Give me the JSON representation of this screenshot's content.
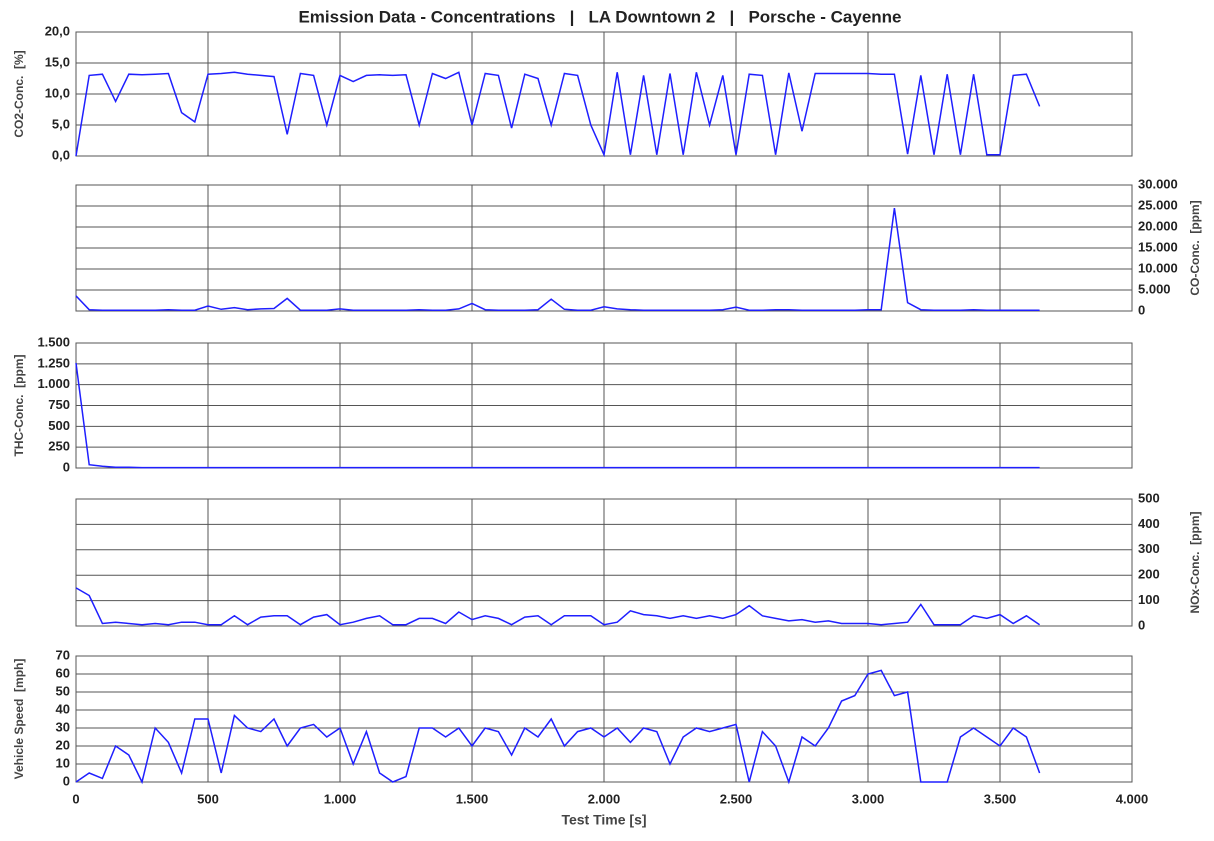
{
  "chart_data": [
    {
      "type": "line",
      "title": "Emission Data - Concentrations   |   LA Downtown 2   |   Porsche - Cayenne",
      "ylabel": "CO2-Conc.  [%]",
      "yaxis": "left",
      "grid": true,
      "color": "#1f1fff",
      "x": [
        0,
        50,
        100,
        150,
        200,
        250,
        300,
        350,
        400,
        450,
        500,
        550,
        600,
        650,
        700,
        750,
        800,
        850,
        900,
        950,
        1000,
        1050,
        1100,
        1150,
        1200,
        1250,
        1300,
        1350,
        1400,
        1450,
        1500,
        1550,
        1600,
        1650,
        1700,
        1750,
        1800,
        1850,
        1900,
        1950,
        2000,
        2050,
        2100,
        2150,
        2200,
        2250,
        2300,
        2350,
        2400,
        2450,
        2500,
        2550,
        2600,
        2650,
        2700,
        2750,
        2800,
        2850,
        2900,
        2950,
        3000,
        3050,
        3100,
        3150,
        3200,
        3250,
        3300,
        3350,
        3400,
        3450,
        3500,
        3550,
        3600,
        3650
      ],
      "values": [
        0,
        13,
        13.2,
        8.8,
        13.2,
        13.1,
        13.2,
        13.3,
        7,
        5.5,
        13.2,
        13.3,
        13.5,
        13.2,
        13,
        12.8,
        3.5,
        13.3,
        13,
        5,
        13,
        12,
        13,
        13.1,
        13,
        13.1,
        5,
        13.3,
        12.5,
        13.5,
        5,
        13.3,
        13,
        4.5,
        13.2,
        12.5,
        5,
        13.3,
        13,
        5,
        0.2,
        13.5,
        0.2,
        13,
        0.2,
        13.3,
        0.2,
        13.5,
        5,
        13,
        0.2,
        13.2,
        13,
        0.2,
        13.4,
        4,
        13.3,
        13.3,
        13.3,
        13.3,
        13.3,
        13.2,
        13.2,
        0.3,
        13,
        0.2,
        13.2,
        0.2,
        13.2,
        0.2,
        0.2,
        13,
        13.2,
        8
      ],
      "xlim": [
        0,
        4000
      ],
      "ylim": [
        0,
        20
      ],
      "yticks": [
        {
          "value": 0,
          "label": "0,0"
        },
        {
          "value": 5,
          "label": "5,0"
        },
        {
          "value": 10,
          "label": "10,0"
        },
        {
          "value": 15,
          "label": "15,0"
        },
        {
          "value": 20,
          "label": "20,0"
        }
      ]
    },
    {
      "type": "line",
      "ylabel": "CO-Conc.  [ppm]",
      "yaxis": "right",
      "grid": true,
      "color": "#1f1fff",
      "x": [
        0,
        50,
        100,
        150,
        200,
        250,
        300,
        350,
        400,
        450,
        500,
        550,
        600,
        650,
        700,
        750,
        800,
        850,
        900,
        950,
        1000,
        1050,
        1100,
        1150,
        1200,
        1250,
        1300,
        1350,
        1400,
        1450,
        1500,
        1550,
        1600,
        1650,
        1700,
        1750,
        1800,
        1850,
        1900,
        1950,
        2000,
        2050,
        2100,
        2150,
        2200,
        2250,
        2300,
        2350,
        2400,
        2450,
        2500,
        2550,
        2600,
        2650,
        2700,
        2750,
        2800,
        2850,
        2900,
        2950,
        3000,
        3050,
        3100,
        3150,
        3200,
        3250,
        3300,
        3350,
        3400,
        3450,
        3500,
        3550,
        3600,
        3650
      ],
      "values": [
        3600,
        300,
        200,
        200,
        200,
        200,
        200,
        300,
        200,
        200,
        1200,
        400,
        800,
        300,
        500,
        600,
        3000,
        200,
        200,
        200,
        500,
        200,
        200,
        200,
        200,
        200,
        300,
        200,
        200,
        500,
        1800,
        300,
        200,
        200,
        200,
        300,
        2800,
        400,
        200,
        200,
        1000,
        500,
        300,
        200,
        200,
        200,
        200,
        200,
        200,
        300,
        900,
        200,
        200,
        300,
        300,
        200,
        200,
        200,
        200,
        200,
        300,
        300,
        24500,
        2000,
        300,
        200,
        200,
        200,
        300,
        200,
        200,
        200,
        200,
        200
      ],
      "xlim": [
        0,
        4000
      ],
      "ylim": [
        0,
        30000
      ],
      "yticks": [
        0,
        {
          "value": 5000,
          "label": "5.000"
        },
        {
          "value": 10000,
          "label": "10.000"
        },
        {
          "value": 15000,
          "label": "15.000"
        },
        {
          "value": 20000,
          "label": "20.000"
        },
        {
          "value": 25000,
          "label": "25.000"
        },
        {
          "value": 30000,
          "label": "30.000"
        }
      ]
    },
    {
      "type": "line",
      "ylabel": "THC-Conc.  [ppm]",
      "yaxis": "left",
      "grid": true,
      "color": "#1f1fff",
      "x": [
        0,
        50,
        100,
        150,
        200,
        250,
        300,
        350,
        400,
        450,
        500,
        550,
        600,
        650,
        700,
        750,
        800,
        850,
        900,
        950,
        1000,
        1050,
        1100,
        1150,
        1200,
        1250,
        1300,
        1350,
        1400,
        1450,
        1500,
        1550,
        1600,
        1650,
        1700,
        1750,
        1800,
        1850,
        1900,
        1950,
        2000,
        2050,
        2100,
        2150,
        2200,
        2250,
        2300,
        2350,
        2400,
        2450,
        2500,
        2550,
        2600,
        2650,
        2700,
        2750,
        2800,
        2850,
        2900,
        2950,
        3000,
        3050,
        3100,
        3150,
        3200,
        3250,
        3300,
        3350,
        3400,
        3450,
        3500,
        3550,
        3600,
        3650
      ],
      "values": [
        1260,
        40,
        20,
        10,
        8,
        5,
        5,
        5,
        5,
        5,
        5,
        5,
        5,
        5,
        5,
        5,
        5,
        5,
        5,
        5,
        5,
        5,
        5,
        5,
        5,
        5,
        5,
        5,
        5,
        5,
        5,
        5,
        5,
        5,
        5,
        5,
        5,
        5,
        5,
        5,
        5,
        5,
        5,
        5,
        5,
        5,
        5,
        5,
        5,
        5,
        5,
        5,
        5,
        5,
        5,
        5,
        5,
        5,
        5,
        5,
        5,
        5,
        5,
        5,
        5,
        5,
        5,
        5,
        5,
        5,
        5,
        5,
        5,
        5
      ],
      "xlim": [
        0,
        4000
      ],
      "ylim": [
        0,
        1500
      ],
      "yticks": [
        0,
        250,
        500,
        750,
        {
          "value": 1000,
          "label": "1.000"
        },
        {
          "value": 1250,
          "label": "1.250"
        },
        {
          "value": 1500,
          "label": "1.500"
        }
      ]
    },
    {
      "type": "line",
      "ylabel": "NOx-Conc.  [ppm]",
      "yaxis": "right",
      "grid": true,
      "color": "#1f1fff",
      "x": [
        0,
        50,
        100,
        150,
        200,
        250,
        300,
        350,
        400,
        450,
        500,
        550,
        600,
        650,
        700,
        750,
        800,
        850,
        900,
        950,
        1000,
        1050,
        1100,
        1150,
        1200,
        1250,
        1300,
        1350,
        1400,
        1450,
        1500,
        1550,
        1600,
        1650,
        1700,
        1750,
        1800,
        1850,
        1900,
        1950,
        2000,
        2050,
        2100,
        2150,
        2200,
        2250,
        2300,
        2350,
        2400,
        2450,
        2500,
        2550,
        2600,
        2650,
        2700,
        2750,
        2800,
        2850,
        2900,
        2950,
        3000,
        3050,
        3100,
        3150,
        3200,
        3250,
        3300,
        3350,
        3400,
        3450,
        3500,
        3550,
        3600,
        3650
      ],
      "values": [
        150,
        120,
        10,
        15,
        10,
        5,
        10,
        5,
        15,
        15,
        5,
        5,
        40,
        5,
        35,
        40,
        40,
        5,
        35,
        45,
        5,
        15,
        30,
        40,
        5,
        5,
        30,
        30,
        10,
        55,
        25,
        40,
        30,
        5,
        35,
        40,
        5,
        40,
        40,
        40,
        5,
        15,
        60,
        45,
        40,
        30,
        40,
        30,
        40,
        30,
        45,
        80,
        40,
        30,
        20,
        25,
        15,
        20,
        10,
        10,
        10,
        5,
        10,
        15,
        85,
        5,
        5,
        5,
        40,
        30,
        45,
        10,
        40,
        5
      ],
      "xlim": [
        0,
        4000
      ],
      "ylim": [
        0,
        500
      ],
      "yticks": [
        0,
        100,
        200,
        300,
        400,
        500
      ]
    },
    {
      "type": "line",
      "ylabel": "Vehicle Speed  [mph]",
      "xlabel": "Test Time [s]",
      "yaxis": "left",
      "grid": true,
      "color": "#1f1fff",
      "x": [
        0,
        50,
        100,
        150,
        200,
        250,
        300,
        350,
        400,
        450,
        500,
        550,
        600,
        650,
        700,
        750,
        800,
        850,
        900,
        950,
        1000,
        1050,
        1100,
        1150,
        1200,
        1250,
        1300,
        1350,
        1400,
        1450,
        1500,
        1550,
        1600,
        1650,
        1700,
        1750,
        1800,
        1850,
        1900,
        1950,
        2000,
        2050,
        2100,
        2150,
        2200,
        2250,
        2300,
        2350,
        2400,
        2450,
        2500,
        2550,
        2600,
        2650,
        2700,
        2750,
        2800,
        2850,
        2900,
        2950,
        3000,
        3050,
        3100,
        3150,
        3200,
        3250,
        3300,
        3350,
        3400,
        3450,
        3500,
        3550,
        3600,
        3650
      ],
      "values": [
        0,
        5,
        2,
        20,
        15,
        0,
        30,
        22,
        5,
        35,
        35,
        5,
        37,
        30,
        28,
        35,
        20,
        30,
        32,
        25,
        30,
        10,
        28,
        5,
        0,
        3,
        30,
        30,
        25,
        30,
        20,
        30,
        28,
        15,
        30,
        25,
        35,
        20,
        28,
        30,
        25,
        30,
        22,
        30,
        28,
        10,
        25,
        30,
        28,
        30,
        32,
        0,
        28,
        20,
        0,
        25,
        20,
        30,
        45,
        48,
        60,
        62,
        48,
        50,
        0,
        0,
        0,
        25,
        30,
        25,
        20,
        30,
        25,
        5
      ],
      "xlim": [
        0,
        4000
      ],
      "ylim": [
        0,
        70
      ],
      "yticks": [
        0,
        10,
        20,
        30,
        40,
        50,
        60,
        70
      ],
      "xticks": [
        0,
        500,
        {
          "value": 1000,
          "label": "1.000"
        },
        {
          "value": 1500,
          "label": "1.500"
        },
        {
          "value": 2000,
          "label": "2.000"
        },
        {
          "value": 2500,
          "label": "2.500"
        },
        {
          "value": 3000,
          "label": "3.000"
        },
        {
          "value": 3500,
          "label": "3.500"
        },
        {
          "value": 4000,
          "label": "4.000"
        }
      ]
    }
  ]
}
